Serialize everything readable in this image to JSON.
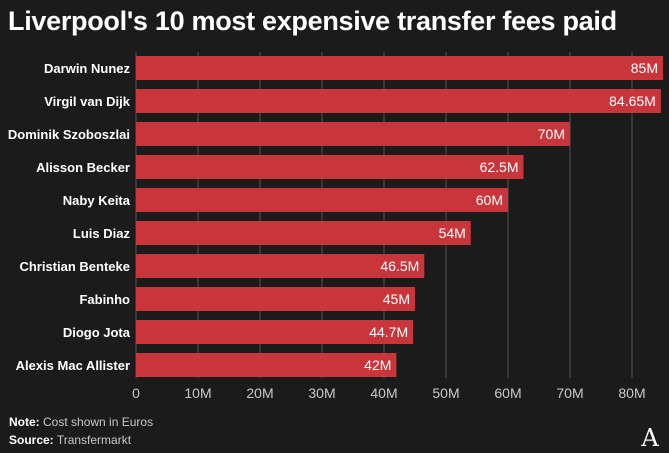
{
  "title": "Liverpool's 10 most expensive transfer fees paid",
  "footer": {
    "note_label": "Note:",
    "note_text": "Cost shown in Euros",
    "source_label": "Source:",
    "source_text": "Transfermarkt"
  },
  "logo": {
    "text": "A"
  },
  "colors": {
    "bar": "#c8363c",
    "background": "#1b1b1b",
    "grid": "#555555"
  },
  "chart_data": {
    "type": "bar",
    "orientation": "horizontal",
    "title": "Liverpool's 10 most expensive transfer fees paid",
    "categories": [
      "Darwin Nunez",
      "Virgil van Dijk",
      "Dominik Szoboszlai",
      "Alisson Becker",
      "Naby Keita",
      "Luis Diaz",
      "Christian Benteke",
      "Fabinho",
      "Diogo Jota",
      "Alexis Mac Allister"
    ],
    "values": [
      85,
      84.65,
      70,
      62.5,
      60,
      54,
      46.5,
      45,
      44.7,
      42
    ],
    "value_labels": [
      "85M",
      "84.65M",
      "70M",
      "62.5M",
      "60M",
      "54M",
      "46.5M",
      "45M",
      "44.7M",
      "42M"
    ],
    "xticks": [
      0,
      10,
      20,
      30,
      40,
      50,
      60,
      70,
      80
    ],
    "xtick_labels": [
      "0",
      "10M",
      "20M",
      "30M",
      "40M",
      "50M",
      "60M",
      "70M",
      "80M"
    ],
    "xlim": [
      0,
      85
    ],
    "grid": true
  }
}
